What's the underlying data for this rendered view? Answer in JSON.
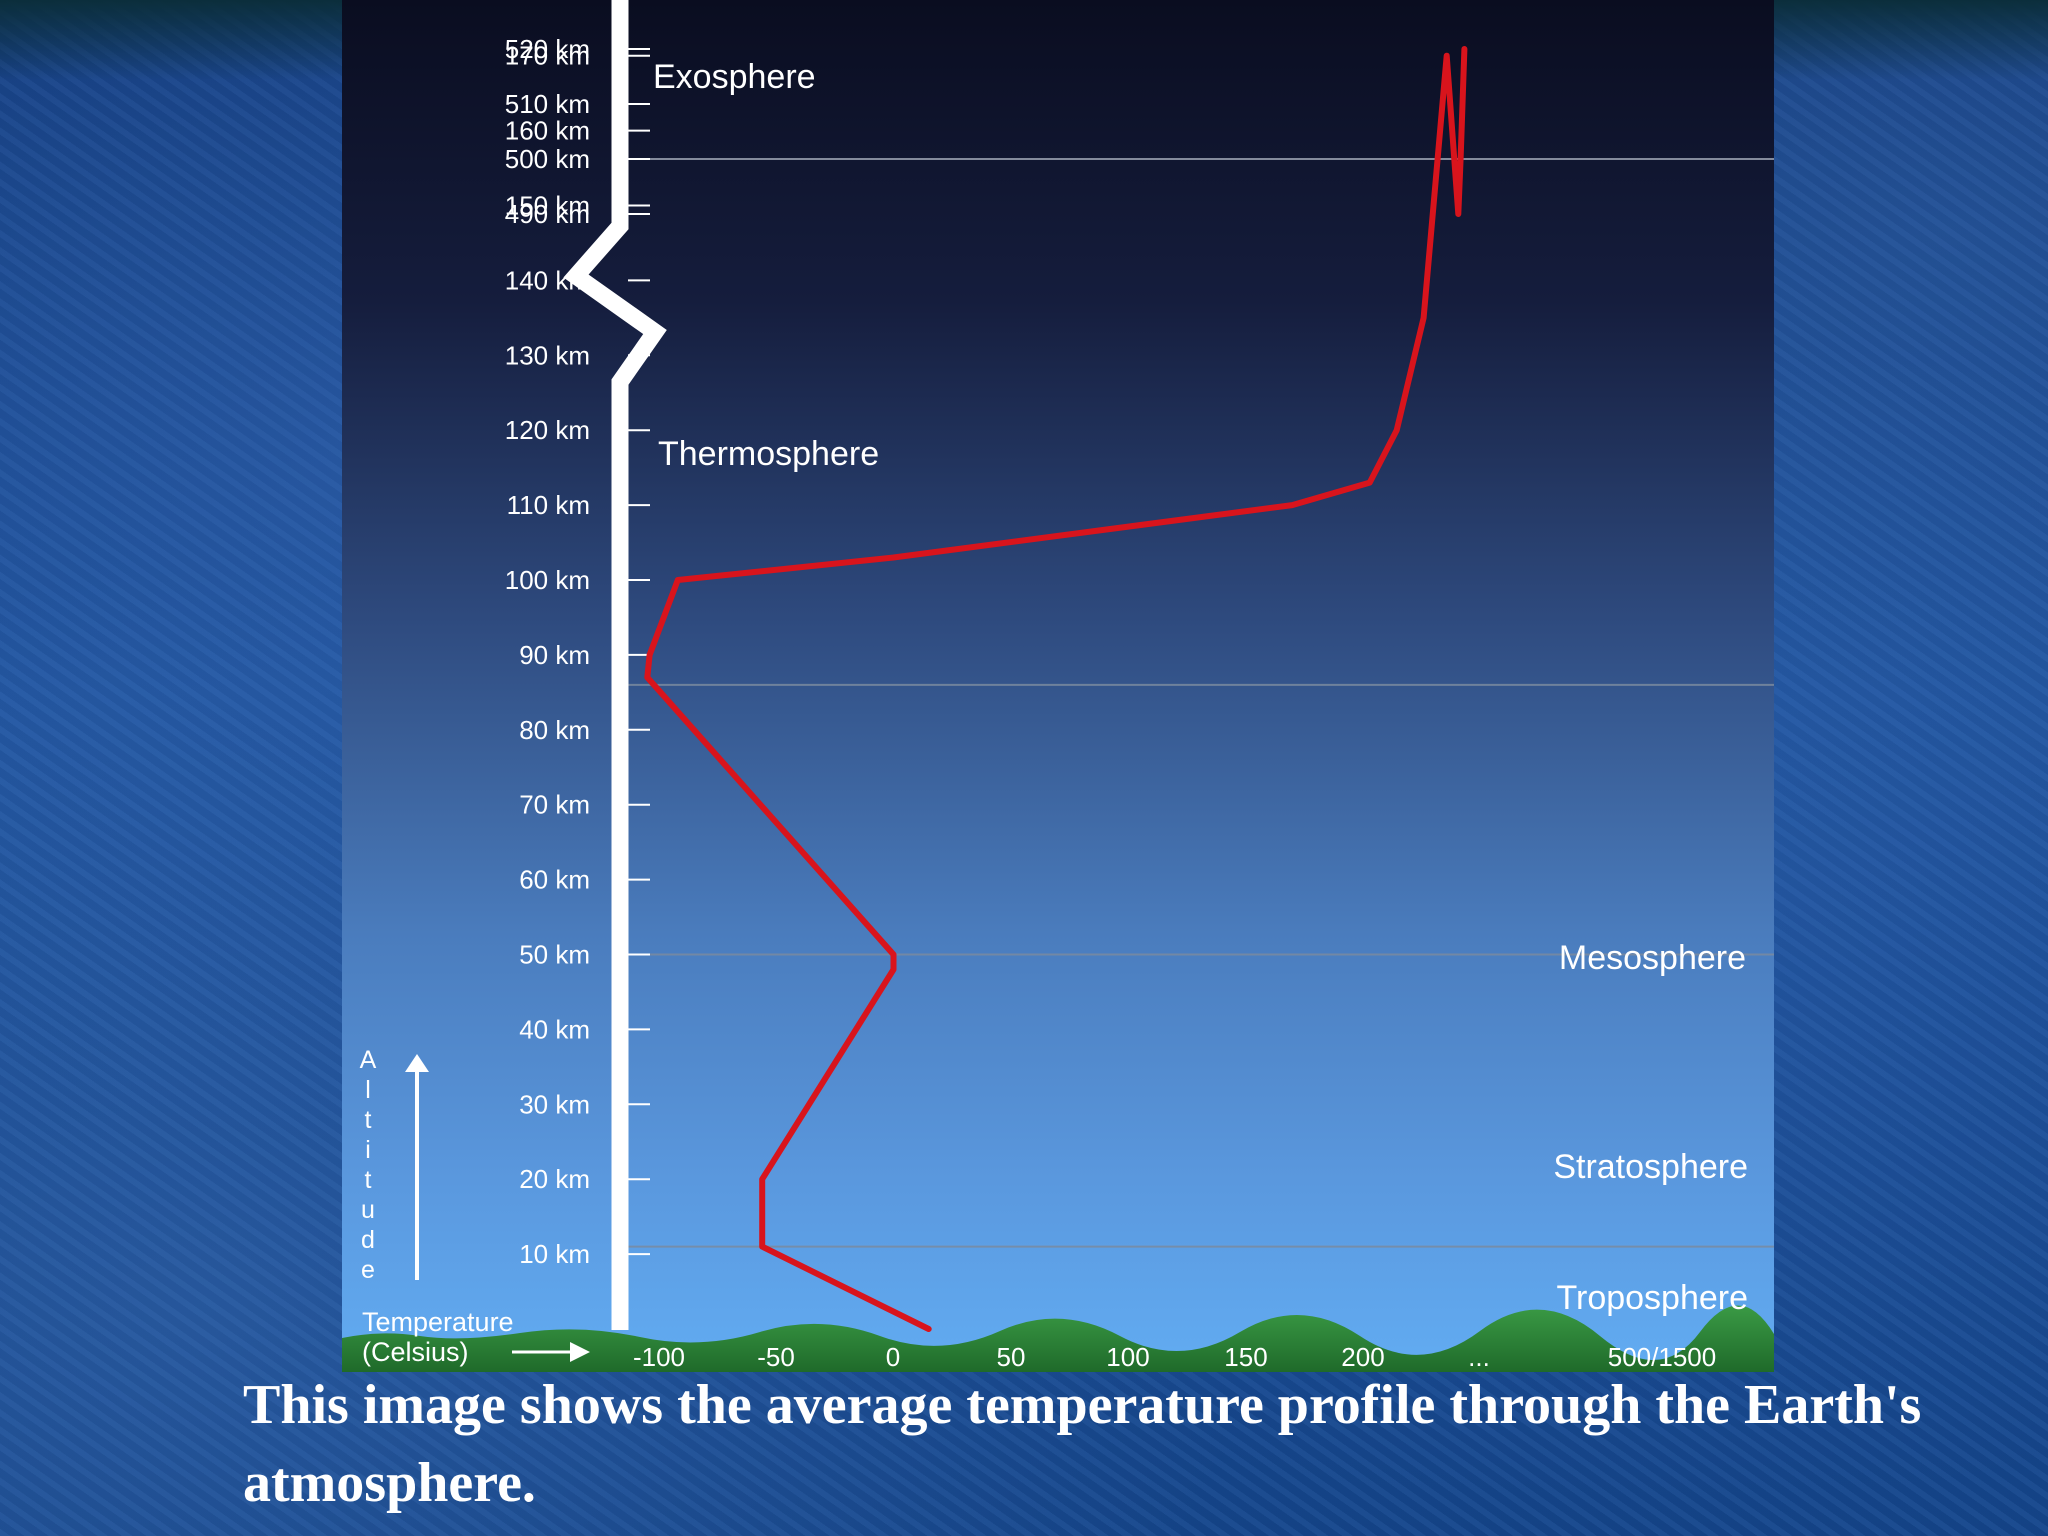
{
  "chart_data": {
    "type": "line",
    "xlabel": "Temperature\n(Celsius)",
    "ylabel": "Altitude",
    "x_tick_labels": [
      "-100",
      "-50",
      "0",
      "50",
      "100",
      "150",
      "200",
      "...",
      "500/1500"
    ],
    "y_tick_labels_upper": [
      "520 km",
      "510 km",
      "500 km",
      "490 km"
    ],
    "y_tick_labels_lower": [
      "170 km",
      "160 km",
      "150 km",
      "140 km",
      "130 km",
      "120 km",
      "110 km",
      "100 km",
      "90 km",
      "80 km",
      "70 km",
      "60 km",
      "50 km",
      "40 km",
      "30 km",
      "20 km",
      "10 km"
    ],
    "layers": [
      {
        "name": "Exosphere",
        "lower_boundary_km": 500
      },
      {
        "name": "Thermosphere",
        "lower_boundary_km": 86
      },
      {
        "name": "Mesosphere",
        "lower_boundary_km": 50
      },
      {
        "name": "Stratosphere",
        "lower_boundary_km": 11
      },
      {
        "name": "Troposphere",
        "lower_boundary_km": 0
      }
    ],
    "series": [
      {
        "color": "#d8141c",
        "points": [
          {
            "alt_km": 0,
            "temp_c": 15
          },
          {
            "alt_km": 11,
            "temp_c": -56
          },
          {
            "alt_km": 20,
            "temp_c": -56
          },
          {
            "alt_km": 48,
            "temp_c": 0
          },
          {
            "alt_km": 50,
            "temp_c": 0
          },
          {
            "alt_km": 87,
            "temp_c": -105
          },
          {
            "alt_km": 90,
            "temp_c": -104
          },
          {
            "alt_km": 100,
            "temp_c": -92
          },
          {
            "alt_km": 103,
            "temp_c": 0
          },
          {
            "alt_km": 110,
            "temp_c": 170
          },
          {
            "alt_km": 113,
            "temp_c": 210
          },
          {
            "alt_km": 120,
            "temp_c": 245
          },
          {
            "alt_km": 135,
            "temp_c": 280
          },
          {
            "alt_km": 170,
            "temp_c": 310
          },
          {
            "alt_km": 490,
            "temp_c": 325
          },
          {
            "alt_km": 500,
            "temp_c": 328
          },
          {
            "alt_km": 520,
            "temp_c": 333
          }
        ]
      }
    ],
    "axis_break": "between 490 km and 170 km",
    "colors": {
      "line": "#d8141c",
      "ground": "#2e8b3a",
      "sky_top": "#0a0d20",
      "sky_bottom": "#5fa8ee"
    }
  },
  "caption": "This image shows the average temperature profile through the Earth's atmosphere."
}
